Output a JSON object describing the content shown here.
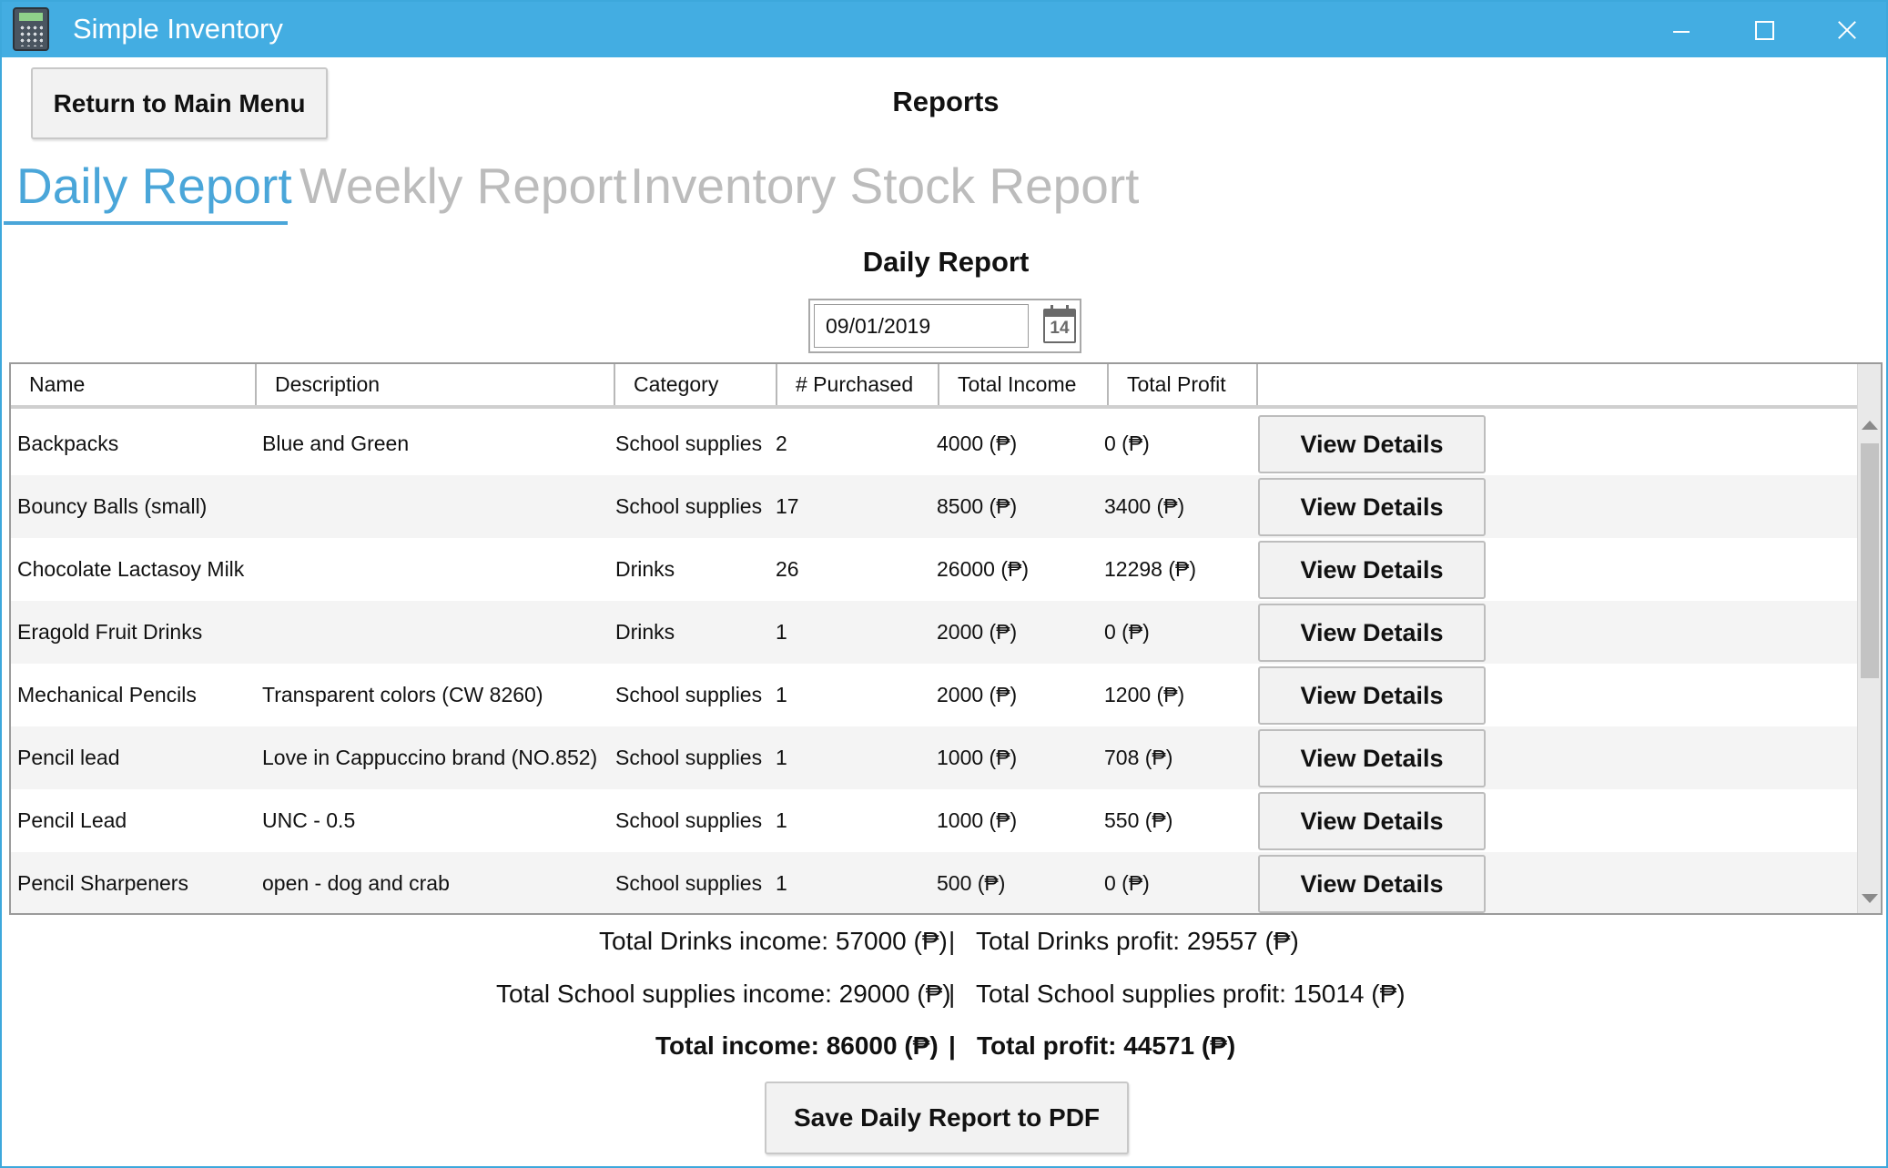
{
  "window": {
    "title": "Simple Inventory"
  },
  "header": {
    "return_label": "Return to Main Menu",
    "page_title": "Reports"
  },
  "tabs": [
    {
      "label": "Daily Report",
      "active": true
    },
    {
      "label": "Weekly Report",
      "active": false
    },
    {
      "label": "Inventory Stock Report",
      "active": false
    }
  ],
  "report": {
    "title": "Daily Report",
    "date": "09/01/2019",
    "calendar_day": "14"
  },
  "table": {
    "columns": [
      "Name",
      "Description",
      "Category",
      "# Purchased",
      "Total Income",
      "Total Profit"
    ],
    "action_label": "View Details",
    "rows": [
      {
        "name": "Backpacks",
        "description": "Blue and Green",
        "category": "School supplies",
        "purchased": "2",
        "income": "4000 (₱)",
        "profit": "0 (₱)"
      },
      {
        "name": "Bouncy Balls (small)",
        "description": "",
        "category": "School supplies",
        "purchased": "17",
        "income": "8500 (₱)",
        "profit": "3400 (₱)"
      },
      {
        "name": "Chocolate Lactasoy Milk",
        "description": "",
        "category": "Drinks",
        "purchased": "26",
        "income": "26000 (₱)",
        "profit": "12298 (₱)"
      },
      {
        "name": "Eragold Fruit Drinks",
        "description": "",
        "category": "Drinks",
        "purchased": "1",
        "income": "2000 (₱)",
        "profit": "0 (₱)"
      },
      {
        "name": "Mechanical Pencils",
        "description": "Transparent colors (CW 8260)",
        "category": "School supplies",
        "purchased": "1",
        "income": "2000 (₱)",
        "profit": "1200 (₱)"
      },
      {
        "name": "Pencil lead",
        "description": "Love in Cappuccino brand (NO.852)",
        "category": "School supplies",
        "purchased": "1",
        "income": "1000 (₱)",
        "profit": "708 (₱)"
      },
      {
        "name": "Pencil Lead",
        "description": "UNC - 0.5",
        "category": "School supplies",
        "purchased": "1",
        "income": "1000 (₱)",
        "profit": "550 (₱)"
      },
      {
        "name": "Pencil Sharpeners",
        "description": "open - dog and crab",
        "category": "School supplies",
        "purchased": "1",
        "income": "500 (₱)",
        "profit": "0 (₱)"
      }
    ]
  },
  "totals": {
    "drinks_income": "Total Drinks income: 57000 (₱)",
    "drinks_profit": "Total Drinks profit: 29557 (₱)",
    "school_income": "Total School supplies income: 29000 (₱)",
    "school_profit": "Total School supplies profit: 15014 (₱)",
    "total_income": "Total income: 86000 (₱)",
    "total_profit": "Total profit: 44571 (₱)",
    "separator": "|"
  },
  "footer": {
    "save_label": "Save Daily Report to PDF"
  },
  "colors": {
    "titlebar": "#43ade2",
    "tab_active": "#4aa6d9",
    "tab_inactive": "#bcbcbc"
  }
}
